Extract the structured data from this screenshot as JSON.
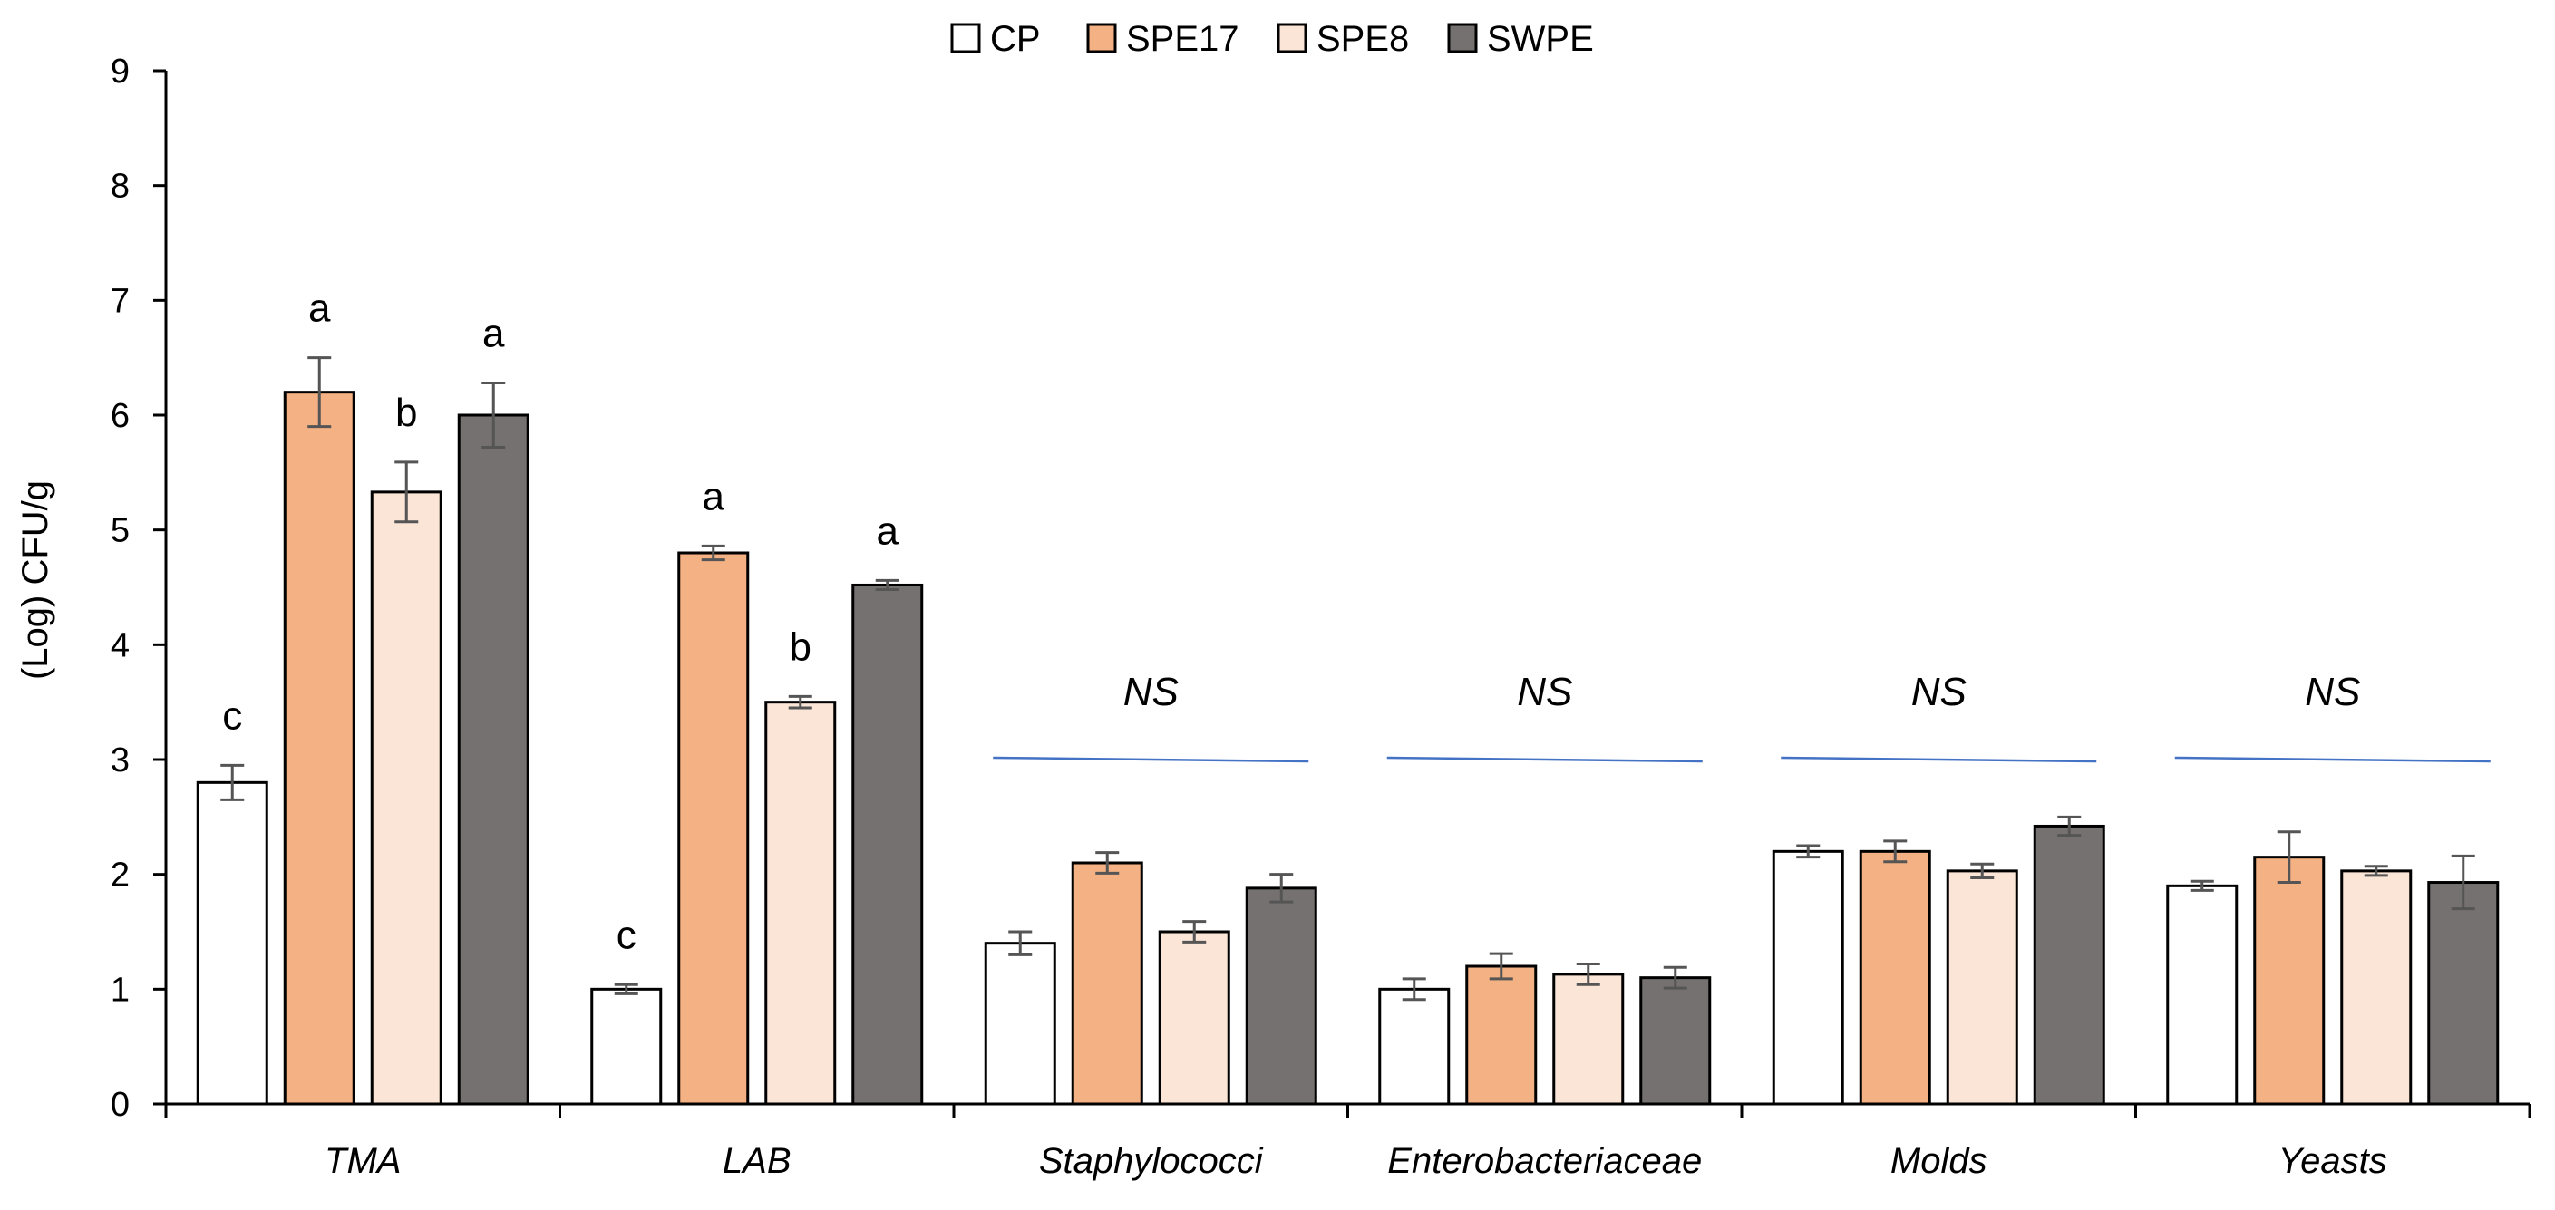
{
  "chart_data": {
    "type": "bar",
    "title": "",
    "xlabel": "",
    "ylabel": "(Log) CFU/g",
    "ylim": [
      0,
      9
    ],
    "yticks": [
      "0",
      "1",
      "2",
      "3",
      "4",
      "5",
      "6",
      "7",
      "8",
      "9"
    ],
    "categories": [
      "TMA",
      "LAB",
      "Staphylococci",
      "Enterobacteriaceae",
      "Molds",
      "Yeasts"
    ],
    "legend_position": "top-center",
    "series": [
      {
        "name": "CP",
        "color": "#ffffff",
        "values": [
          2.8,
          1.0,
          1.4,
          1.0,
          2.2,
          1.9
        ],
        "errors": [
          0.15,
          0.04,
          0.1,
          0.09,
          0.05,
          0.04
        ]
      },
      {
        "name": "SPE17",
        "color": "#f4b183",
        "values": [
          6.2,
          4.8,
          2.1,
          1.2,
          2.2,
          2.15
        ],
        "errors": [
          0.3,
          0.06,
          0.09,
          0.11,
          0.09,
          0.22
        ]
      },
      {
        "name": "SPE8",
        "color": "#fbe5d6",
        "values": [
          5.33,
          3.5,
          1.5,
          1.13,
          2.03,
          2.03
        ],
        "errors": [
          0.26,
          0.05,
          0.09,
          0.09,
          0.06,
          0.04
        ]
      },
      {
        "name": "SWPE",
        "color": "#767171",
        "values": [
          6.0,
          4.52,
          1.88,
          1.1,
          2.42,
          1.93
        ],
        "errors": [
          0.28,
          0.04,
          0.12,
          0.09,
          0.08,
          0.23
        ]
      }
    ],
    "annotations": {
      "significance_letters": [
        [
          "c",
          "a",
          "b",
          "a"
        ],
        [
          "c",
          "a",
          "b",
          "a"
        ],
        null,
        null,
        null,
        null
      ],
      "ns_labels": [
        null,
        null,
        "NS",
        "NS",
        "NS",
        "NS"
      ],
      "ns_line_value": 3.0,
      "ns_line_color": "#4472c4"
    }
  }
}
